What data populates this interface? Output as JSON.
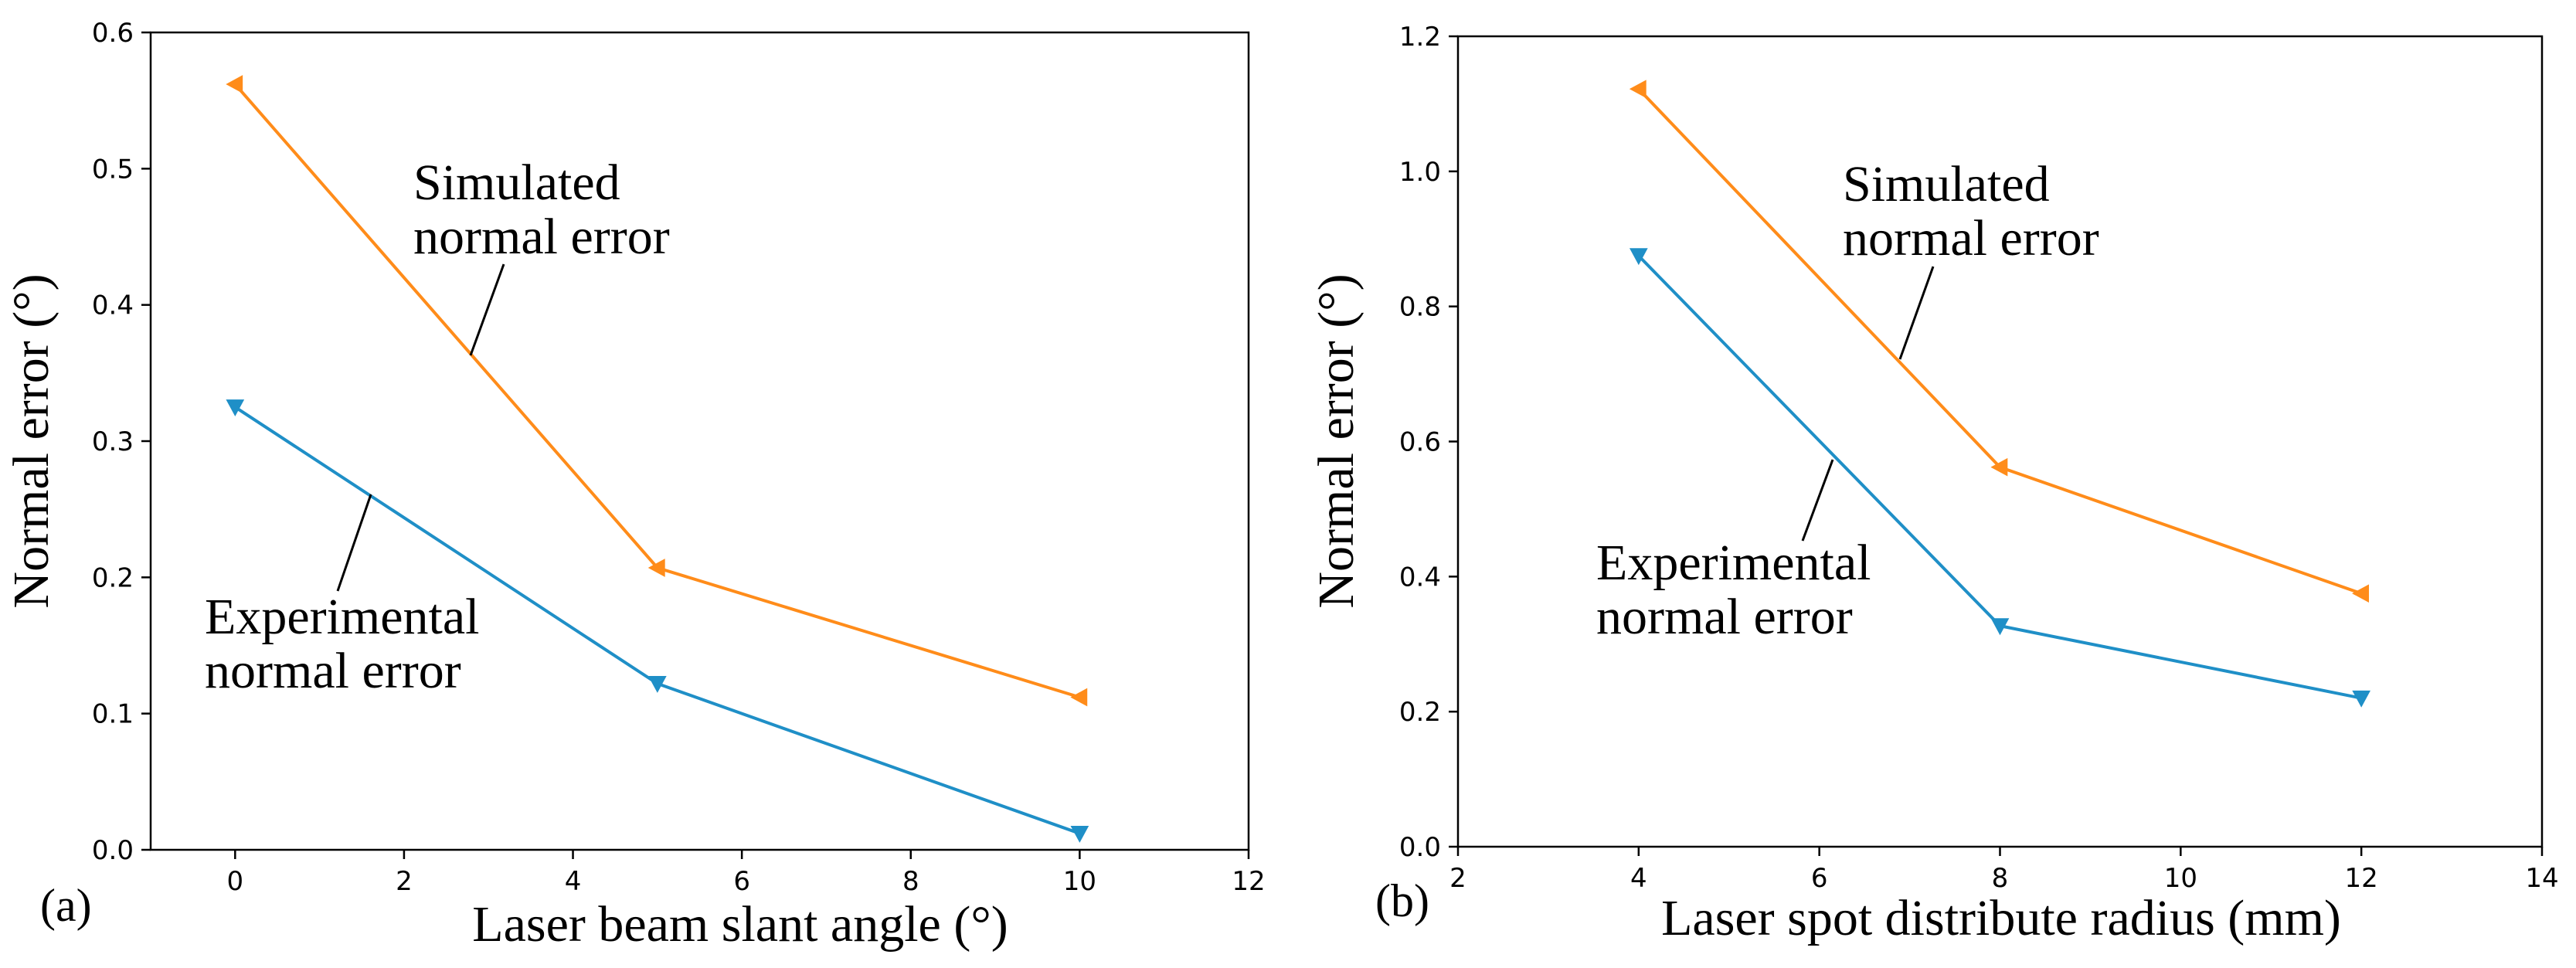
{
  "colors": {
    "simulated": "#ff8c1a",
    "experimental": "#1f8fc7",
    "axis": "#000000"
  },
  "chart_data": [
    {
      "type": "line",
      "panel_label": "(a)",
      "xlabel": "Laser beam slant angle (°)",
      "ylabel": "Normal error (°)",
      "xlim": [
        -1,
        12
      ],
      "ylim": [
        0,
        0.6
      ],
      "xticks": [
        "0",
        "2",
        "4",
        "6",
        "8",
        "10",
        "12"
      ],
      "yticks": [
        "0.0",
        "0.1",
        "0.2",
        "0.3",
        "0.4",
        "0.5",
        "0.6"
      ],
      "x": [
        0,
        5,
        10
      ],
      "series": [
        {
          "key": "simulated",
          "values": [
            0.562,
            0.207,
            0.112
          ],
          "marker": "triangle-left"
        },
        {
          "key": "experimental",
          "values": [
            0.325,
            0.122,
            0.012
          ],
          "marker": "triangle-down"
        }
      ],
      "annotations": [
        {
          "lines": [
            "Simulated",
            "normal error"
          ],
          "series": "simulated"
        },
        {
          "lines": [
            "Experimental",
            "normal error"
          ],
          "series": "experimental"
        }
      ]
    },
    {
      "type": "line",
      "panel_label": "(b)",
      "xlabel": "Laser spot distribute radius (mm)",
      "ylabel": "Normal error (°)",
      "xlim": [
        2,
        14
      ],
      "ylim": [
        0,
        1.2
      ],
      "xticks": [
        "2",
        "4",
        "6",
        "8",
        "10",
        "12",
        "14"
      ],
      "yticks": [
        "0.0",
        "0.2",
        "0.4",
        "0.6",
        "0.8",
        "1.0",
        "1.2"
      ],
      "x": [
        4,
        8,
        12
      ],
      "series": [
        {
          "key": "simulated",
          "values": [
            1.122,
            0.562,
            0.375
          ],
          "marker": "triangle-left"
        },
        {
          "key": "experimental",
          "values": [
            0.875,
            0.327,
            0.22
          ],
          "marker": "triangle-down"
        }
      ],
      "annotations": [
        {
          "lines": [
            "Simulated",
            "normal error"
          ],
          "series": "simulated"
        },
        {
          "lines": [
            "Experimental",
            "normal error"
          ],
          "series": "experimental"
        }
      ]
    }
  ]
}
